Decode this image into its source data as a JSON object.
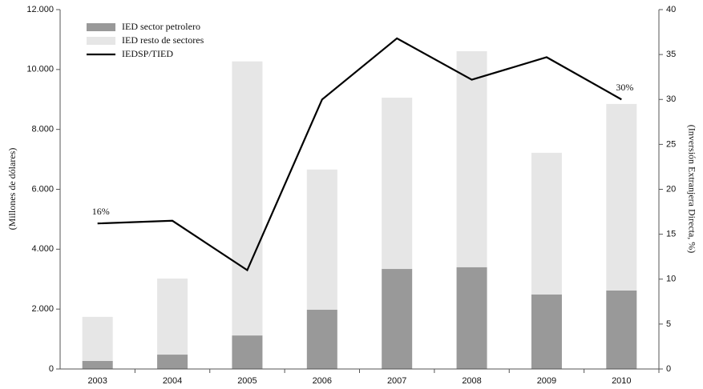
{
  "chart_data": {
    "type": "bar",
    "stacked": true,
    "categories": [
      "2003",
      "2004",
      "2005",
      "2006",
      "2007",
      "2008",
      "2009",
      "2010"
    ],
    "series": [
      {
        "name": "IED sector petrolero",
        "color": "#999999",
        "values": [
          270,
          480,
          1120,
          1980,
          3340,
          3400,
          2490,
          2620
        ]
      },
      {
        "name": "IED resto de sectores",
        "color": "#e6e6e6",
        "values": [
          1470,
          2540,
          9150,
          4680,
          5720,
          7210,
          4730,
          6230
        ]
      },
      {
        "name": "IEDSP/TIED",
        "color": "#000000",
        "type": "line",
        "axis": "y2",
        "values": [
          16.2,
          16.5,
          11.0,
          30.0,
          36.8,
          32.2,
          34.7,
          30.0
        ],
        "value_labels": [
          "16%",
          null,
          null,
          null,
          null,
          null,
          null,
          "30%"
        ]
      }
    ],
    "ylabel": "(Millones de dólares)",
    "y2label": "(Inversión Extranjera Directa, %)",
    "ylim": [
      0,
      12000
    ],
    "yticks": [
      0,
      {
        "value": 2000,
        "label": "2.000"
      },
      {
        "value": 4000,
        "label": "4.000"
      },
      {
        "value": 6000,
        "label": "6.000"
      },
      {
        "value": 8000,
        "label": "8.000"
      },
      {
        "value": 10000,
        "label": "10.000"
      },
      {
        "value": 12000,
        "label": "12.000"
      }
    ],
    "y2lim": [
      0,
      40
    ],
    "y2ticks": [
      0,
      5,
      10,
      15,
      20,
      25,
      30,
      35,
      40
    ],
    "legend": "upper left"
  }
}
